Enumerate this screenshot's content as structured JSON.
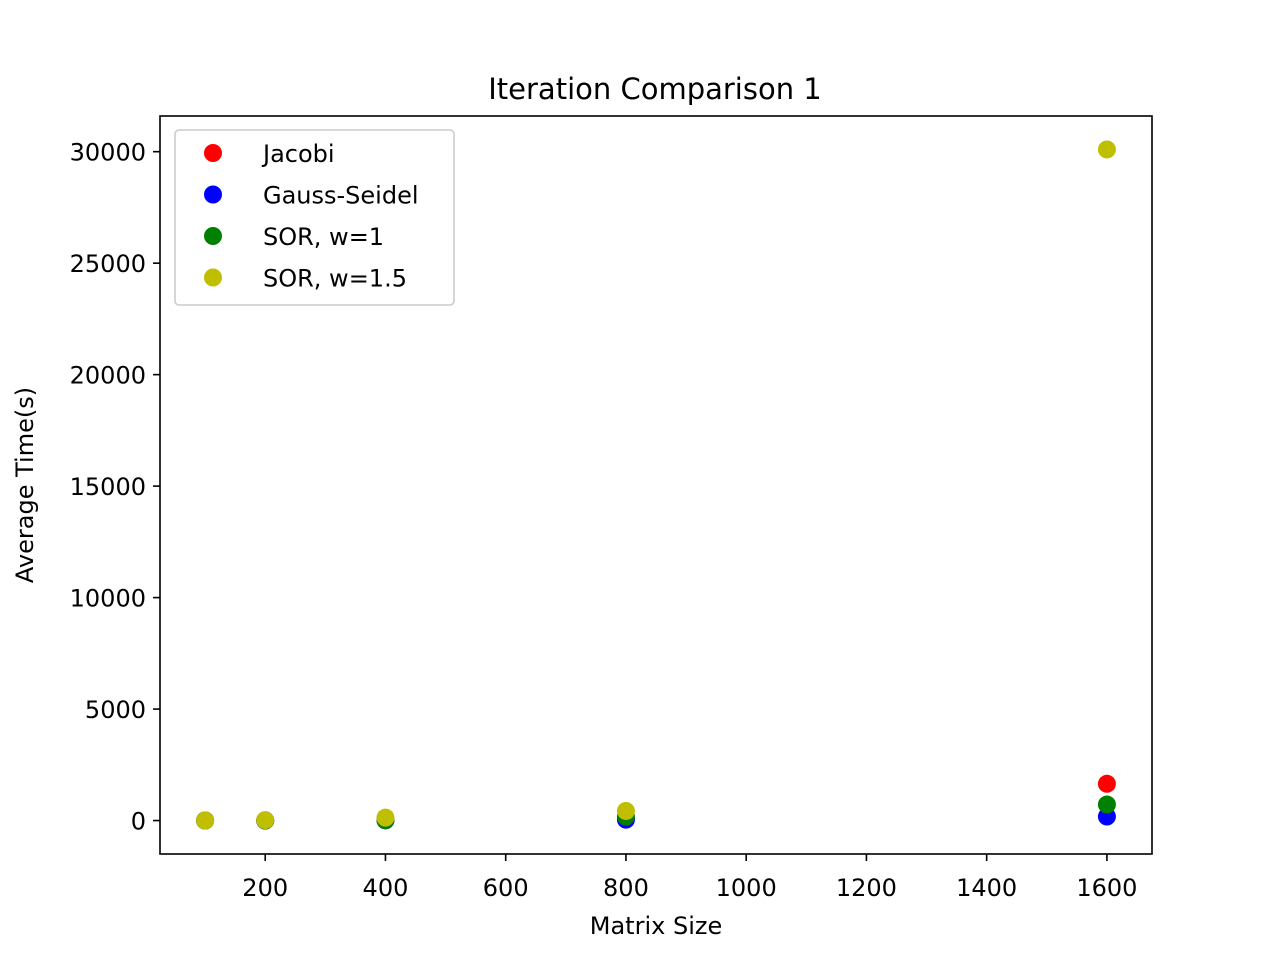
{
  "chart_data": {
    "type": "scatter",
    "title": "Iteration Comparison 1",
    "xlabel": "Matrix Size",
    "ylabel": "Average Time(s)",
    "xlim": [
      25,
      1675
    ],
    "ylim": [
      -1500,
      31600
    ],
    "xticks": [
      200,
      400,
      600,
      800,
      1000,
      1200,
      1400,
      1600
    ],
    "yticks": [
      0,
      5000,
      10000,
      15000,
      20000,
      25000,
      30000
    ],
    "grid": false,
    "legend_position": "upper-left",
    "x": [
      100,
      200,
      400,
      800,
      1600
    ],
    "series": [
      {
        "name": "Jacobi",
        "color": "#ff0000",
        "values": [
          0.5,
          5,
          30,
          100,
          1650
        ]
      },
      {
        "name": "Gauss-Seidel",
        "color": "#0000ff",
        "values": [
          0.2,
          2,
          10,
          40,
          180
        ]
      },
      {
        "name": "SOR, w=1",
        "color": "#008000",
        "values": [
          0.2,
          3,
          20,
          180,
          720
        ]
      },
      {
        "name": "SOR, w=1.5",
        "color": "#bfbf00",
        "values": [
          1,
          20,
          130,
          430,
          30100
        ]
      }
    ]
  }
}
